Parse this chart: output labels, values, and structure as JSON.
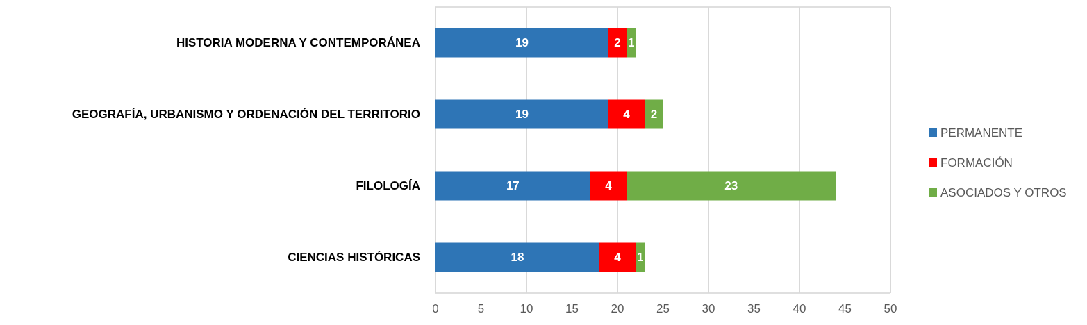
{
  "chart_data": {
    "type": "bar",
    "orientation": "horizontal",
    "stacked": true,
    "categories": [
      "HISTORIA MODERNA Y CONTEMPORÁNEA",
      "GEOGRAFÍA, URBANISMO Y ORDENACIÓN DEL TERRITORIO",
      "FILOLOGÍA",
      "CIENCIAS HISTÓRICAS"
    ],
    "series": [
      {
        "name": "PERMANENTE",
        "color": "#2e75b6",
        "values": [
          19,
          19,
          17,
          18
        ]
      },
      {
        "name": "FORMACIÓN",
        "color": "#ff0000",
        "values": [
          2,
          4,
          4,
          4
        ]
      },
      {
        "name": "ASOCIADOS Y OTROS",
        "color": "#70ad47",
        "values": [
          1,
          2,
          23,
          1
        ]
      }
    ],
    "xlim": [
      0,
      50
    ],
    "xticks": [
      0,
      5,
      10,
      15,
      20,
      25,
      30,
      35,
      40,
      45,
      50
    ],
    "grid": "x",
    "legend": "right",
    "data_labels": true
  }
}
